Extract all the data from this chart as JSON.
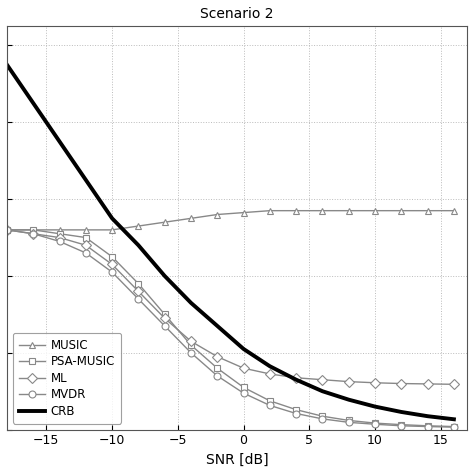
{
  "title": "Scenario 2",
  "xlabel": "SNR [dB]",
  "snr": [
    -18,
    -16,
    -14,
    -12,
    -10,
    -8,
    -6,
    -4,
    -2,
    0,
    2,
    4,
    6,
    8,
    10,
    12,
    14,
    16
  ],
  "MUSIC": [
    5.2,
    5.2,
    5.2,
    5.2,
    5.2,
    5.3,
    5.4,
    5.5,
    5.6,
    5.65,
    5.7,
    5.7,
    5.7,
    5.7,
    5.7,
    5.7,
    5.7,
    5.7
  ],
  "PSA_MUSIC": [
    5.2,
    5.2,
    5.1,
    5.0,
    4.5,
    3.8,
    3.0,
    2.2,
    1.6,
    1.1,
    0.75,
    0.52,
    0.35,
    0.24,
    0.17,
    0.13,
    0.1,
    0.08
  ],
  "ML": [
    5.2,
    5.1,
    5.0,
    4.8,
    4.3,
    3.6,
    2.9,
    2.3,
    1.9,
    1.6,
    1.45,
    1.35,
    1.3,
    1.25,
    1.22,
    1.2,
    1.19,
    1.18
  ],
  "MVDR": [
    5.2,
    5.1,
    4.9,
    4.6,
    4.1,
    3.4,
    2.7,
    2.0,
    1.4,
    0.95,
    0.63,
    0.42,
    0.28,
    0.19,
    0.14,
    0.1,
    0.08,
    0.065
  ],
  "CRB": [
    9.5,
    8.5,
    7.5,
    6.5,
    5.5,
    4.8,
    4.0,
    3.3,
    2.7,
    2.1,
    1.65,
    1.3,
    1.0,
    0.78,
    0.6,
    0.46,
    0.35,
    0.27
  ],
  "xlim": [
    -18,
    17
  ],
  "ylim": [
    0.0,
    10.5
  ],
  "xticks": [
    -15,
    -10,
    -5,
    0,
    5,
    10,
    15
  ],
  "line_color": "#888888",
  "crb_color": "#000000",
  "bg_color": "#ffffff",
  "grid_color": "#bbbbbb"
}
